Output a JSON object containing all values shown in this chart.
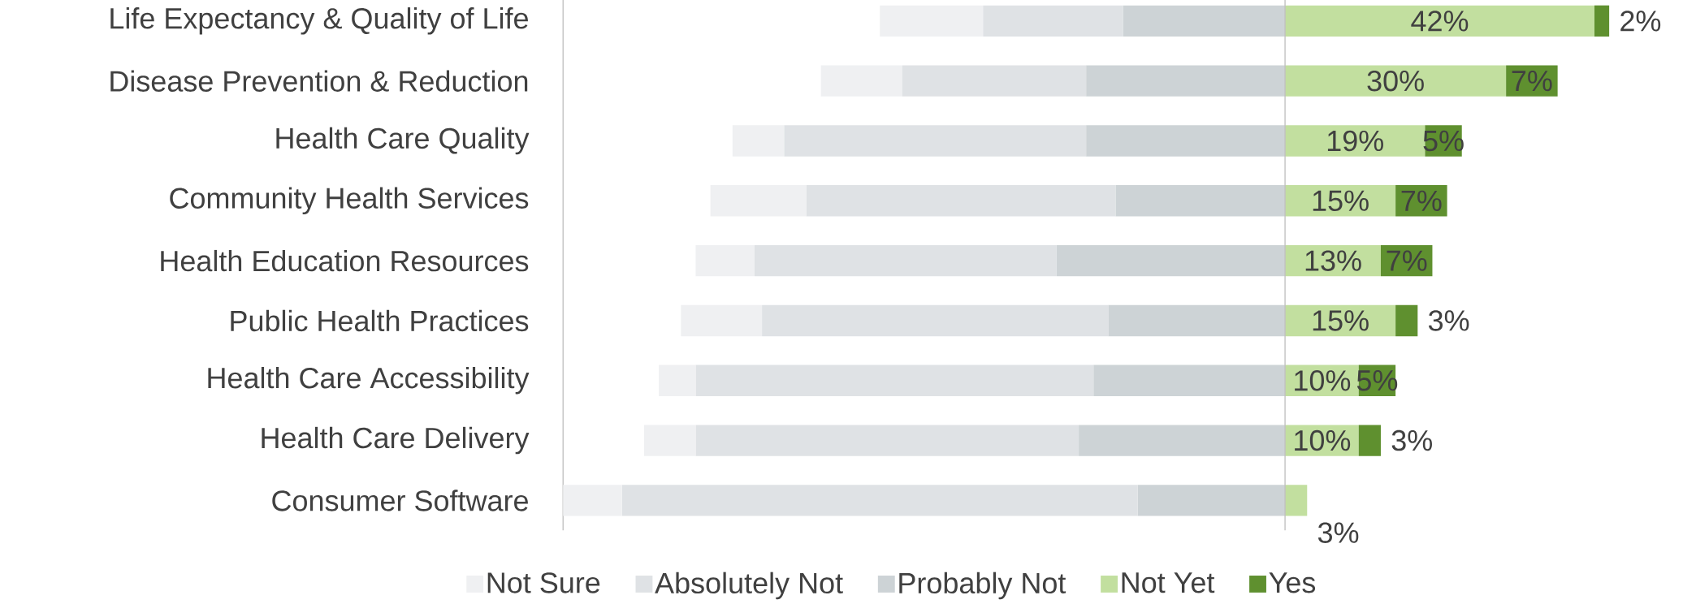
{
  "chart_data": {
    "type": "bar",
    "orientation": "horizontal",
    "stacked": true,
    "legend": "bottom",
    "categories": [
      "Life Expectancy & Quality of Life",
      "Disease Prevention & Reduction",
      "Health Care Quality",
      "Community Health Services",
      "Health Education Resources",
      "Public Health Practices",
      "Health Care Accessibility",
      "Health Care Delivery",
      "Consumer Software"
    ],
    "series": [
      {
        "name": "Probably Not",
        "color": "#cdd3d6",
        "values": [
          -22,
          -27,
          -27,
          -23,
          -31,
          -24,
          -26,
          -28,
          -20
        ]
      },
      {
        "name": "Absolutely Not",
        "color": "#dfe2e5",
        "values": [
          -19,
          -25,
          -41,
          -42,
          -41,
          -47,
          -54,
          -52,
          -70
        ]
      },
      {
        "name": "Not Sure",
        "color": "#eff0f2",
        "values": [
          -14,
          -11,
          -7,
          -13,
          -8,
          -11,
          -5,
          -7,
          -8
        ]
      },
      {
        "name": "Not Yet",
        "color": "#c2df9f",
        "values": [
          42,
          30,
          19,
          15,
          13,
          15,
          10,
          10,
          3
        ],
        "value_labels": [
          "42%",
          "30%",
          "19%",
          "15%",
          "13%",
          "15%",
          "10%",
          "10%",
          "3%"
        ]
      },
      {
        "name": "Yes",
        "color": "#5f902f",
        "values": [
          2,
          7,
          5,
          7,
          7,
          3,
          5,
          3,
          null
        ],
        "value_labels": [
          "2%",
          "7%",
          "5%",
          "7%",
          "7%",
          "3%",
          "5%",
          "3%",
          null
        ]
      }
    ]
  }
}
